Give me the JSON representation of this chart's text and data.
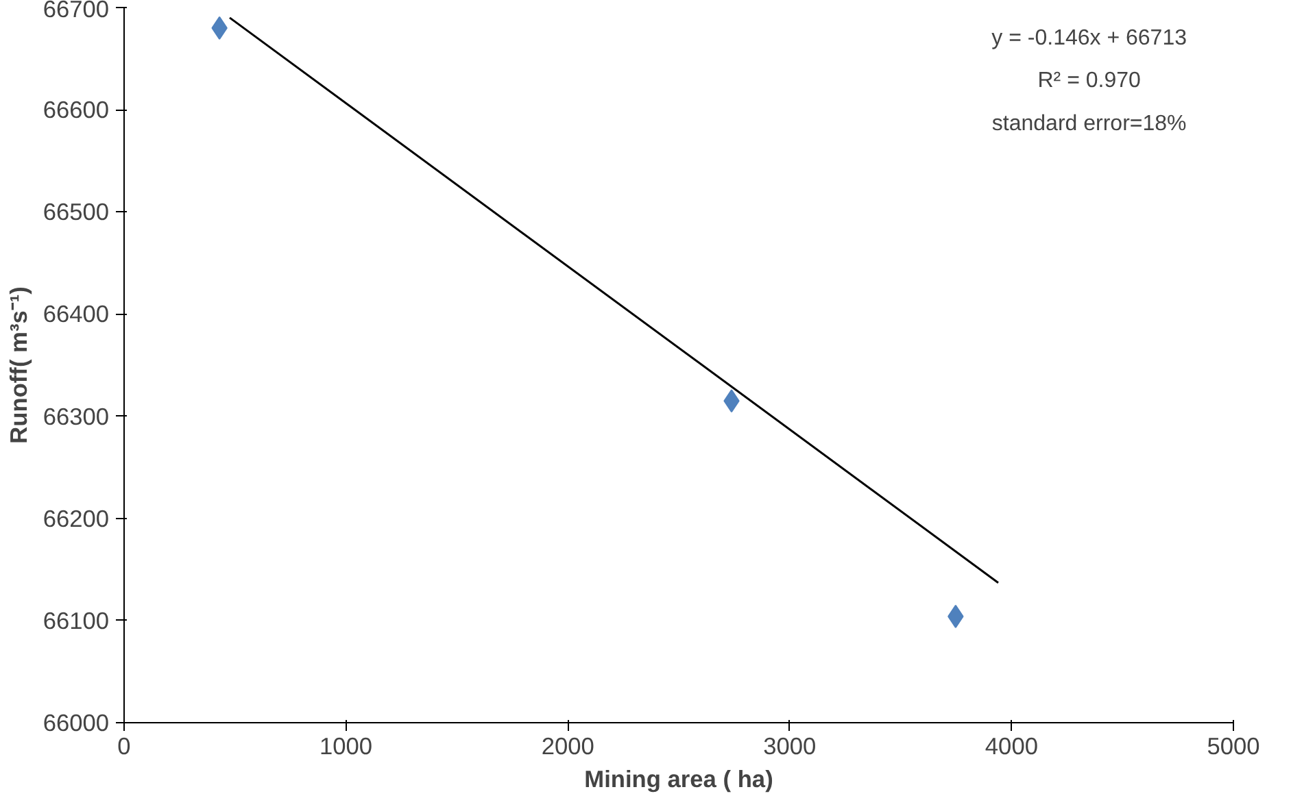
{
  "chart_data": {
    "type": "scatter",
    "xlabel": "Mining area ( ha)",
    "ylabel": "Runoff( m³s⁻¹)",
    "xlim": [
      0,
      5000
    ],
    "xticks": [
      0,
      1000,
      2000,
      3000,
      4000,
      5000
    ],
    "ylim": [
      66000,
      66700
    ],
    "yticks": [
      66000,
      66100,
      66200,
      66300,
      66400,
      66500,
      66600,
      66700
    ],
    "grid": false,
    "marker": "diamond",
    "series": [
      {
        "color": "#4f81bd",
        "x": [
          430,
          2738,
          3748
        ],
        "values": [
          66680,
          66315,
          66104
        ]
      },
      {
        "type": "line",
        "color": "#000000",
        "x": [
          476,
          3940
        ],
        "values": [
          66690,
          66137
        ],
        "marker": "none"
      }
    ],
    "annotations": [
      "y = -0.146x + 66713",
      "R² = 0.970",
      "standard error=18%"
    ]
  }
}
